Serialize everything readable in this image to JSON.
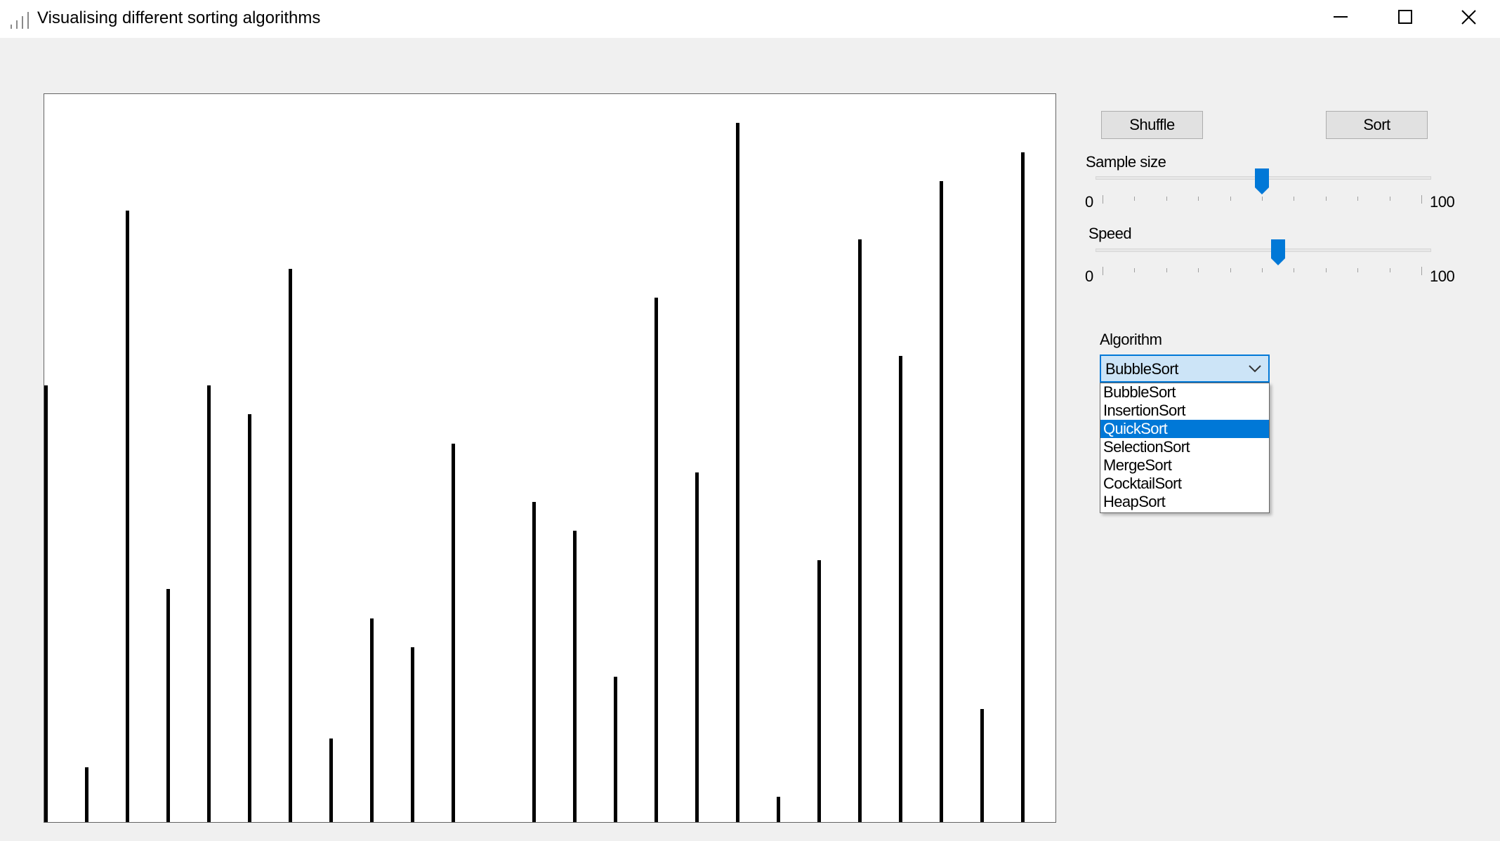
{
  "window": {
    "title": "Visualising different sorting algorithms"
  },
  "canvas": {
    "bars": [
      60,
      7.5,
      84,
      32,
      60,
      56,
      76,
      11.5,
      28,
      24,
      52,
      0,
      44,
      40,
      20,
      72,
      48,
      96,
      3.5,
      36,
      80,
      64,
      88,
      15.5,
      92
    ],
    "bar_color": "#000000"
  },
  "controls": {
    "shuffle_label": "Shuffle",
    "sort_label": "Sort",
    "sample_size": {
      "label": "Sample size",
      "min": "0",
      "max": "100",
      "value": 50
    },
    "speed": {
      "label": "Speed",
      "min": "0",
      "max": "100",
      "value": 55
    },
    "algorithm": {
      "label": "Algorithm",
      "selected": "BubbleSort",
      "highlighted": "QuickSort",
      "options": [
        "BubbleSort",
        "InsertionSort",
        "QuickSort",
        "SelectionSort",
        "MergeSort",
        "CocktailSort",
        "HeapSort"
      ]
    }
  },
  "colors": {
    "accent": "#0078d7",
    "combo_bg": "#cce4f7"
  }
}
